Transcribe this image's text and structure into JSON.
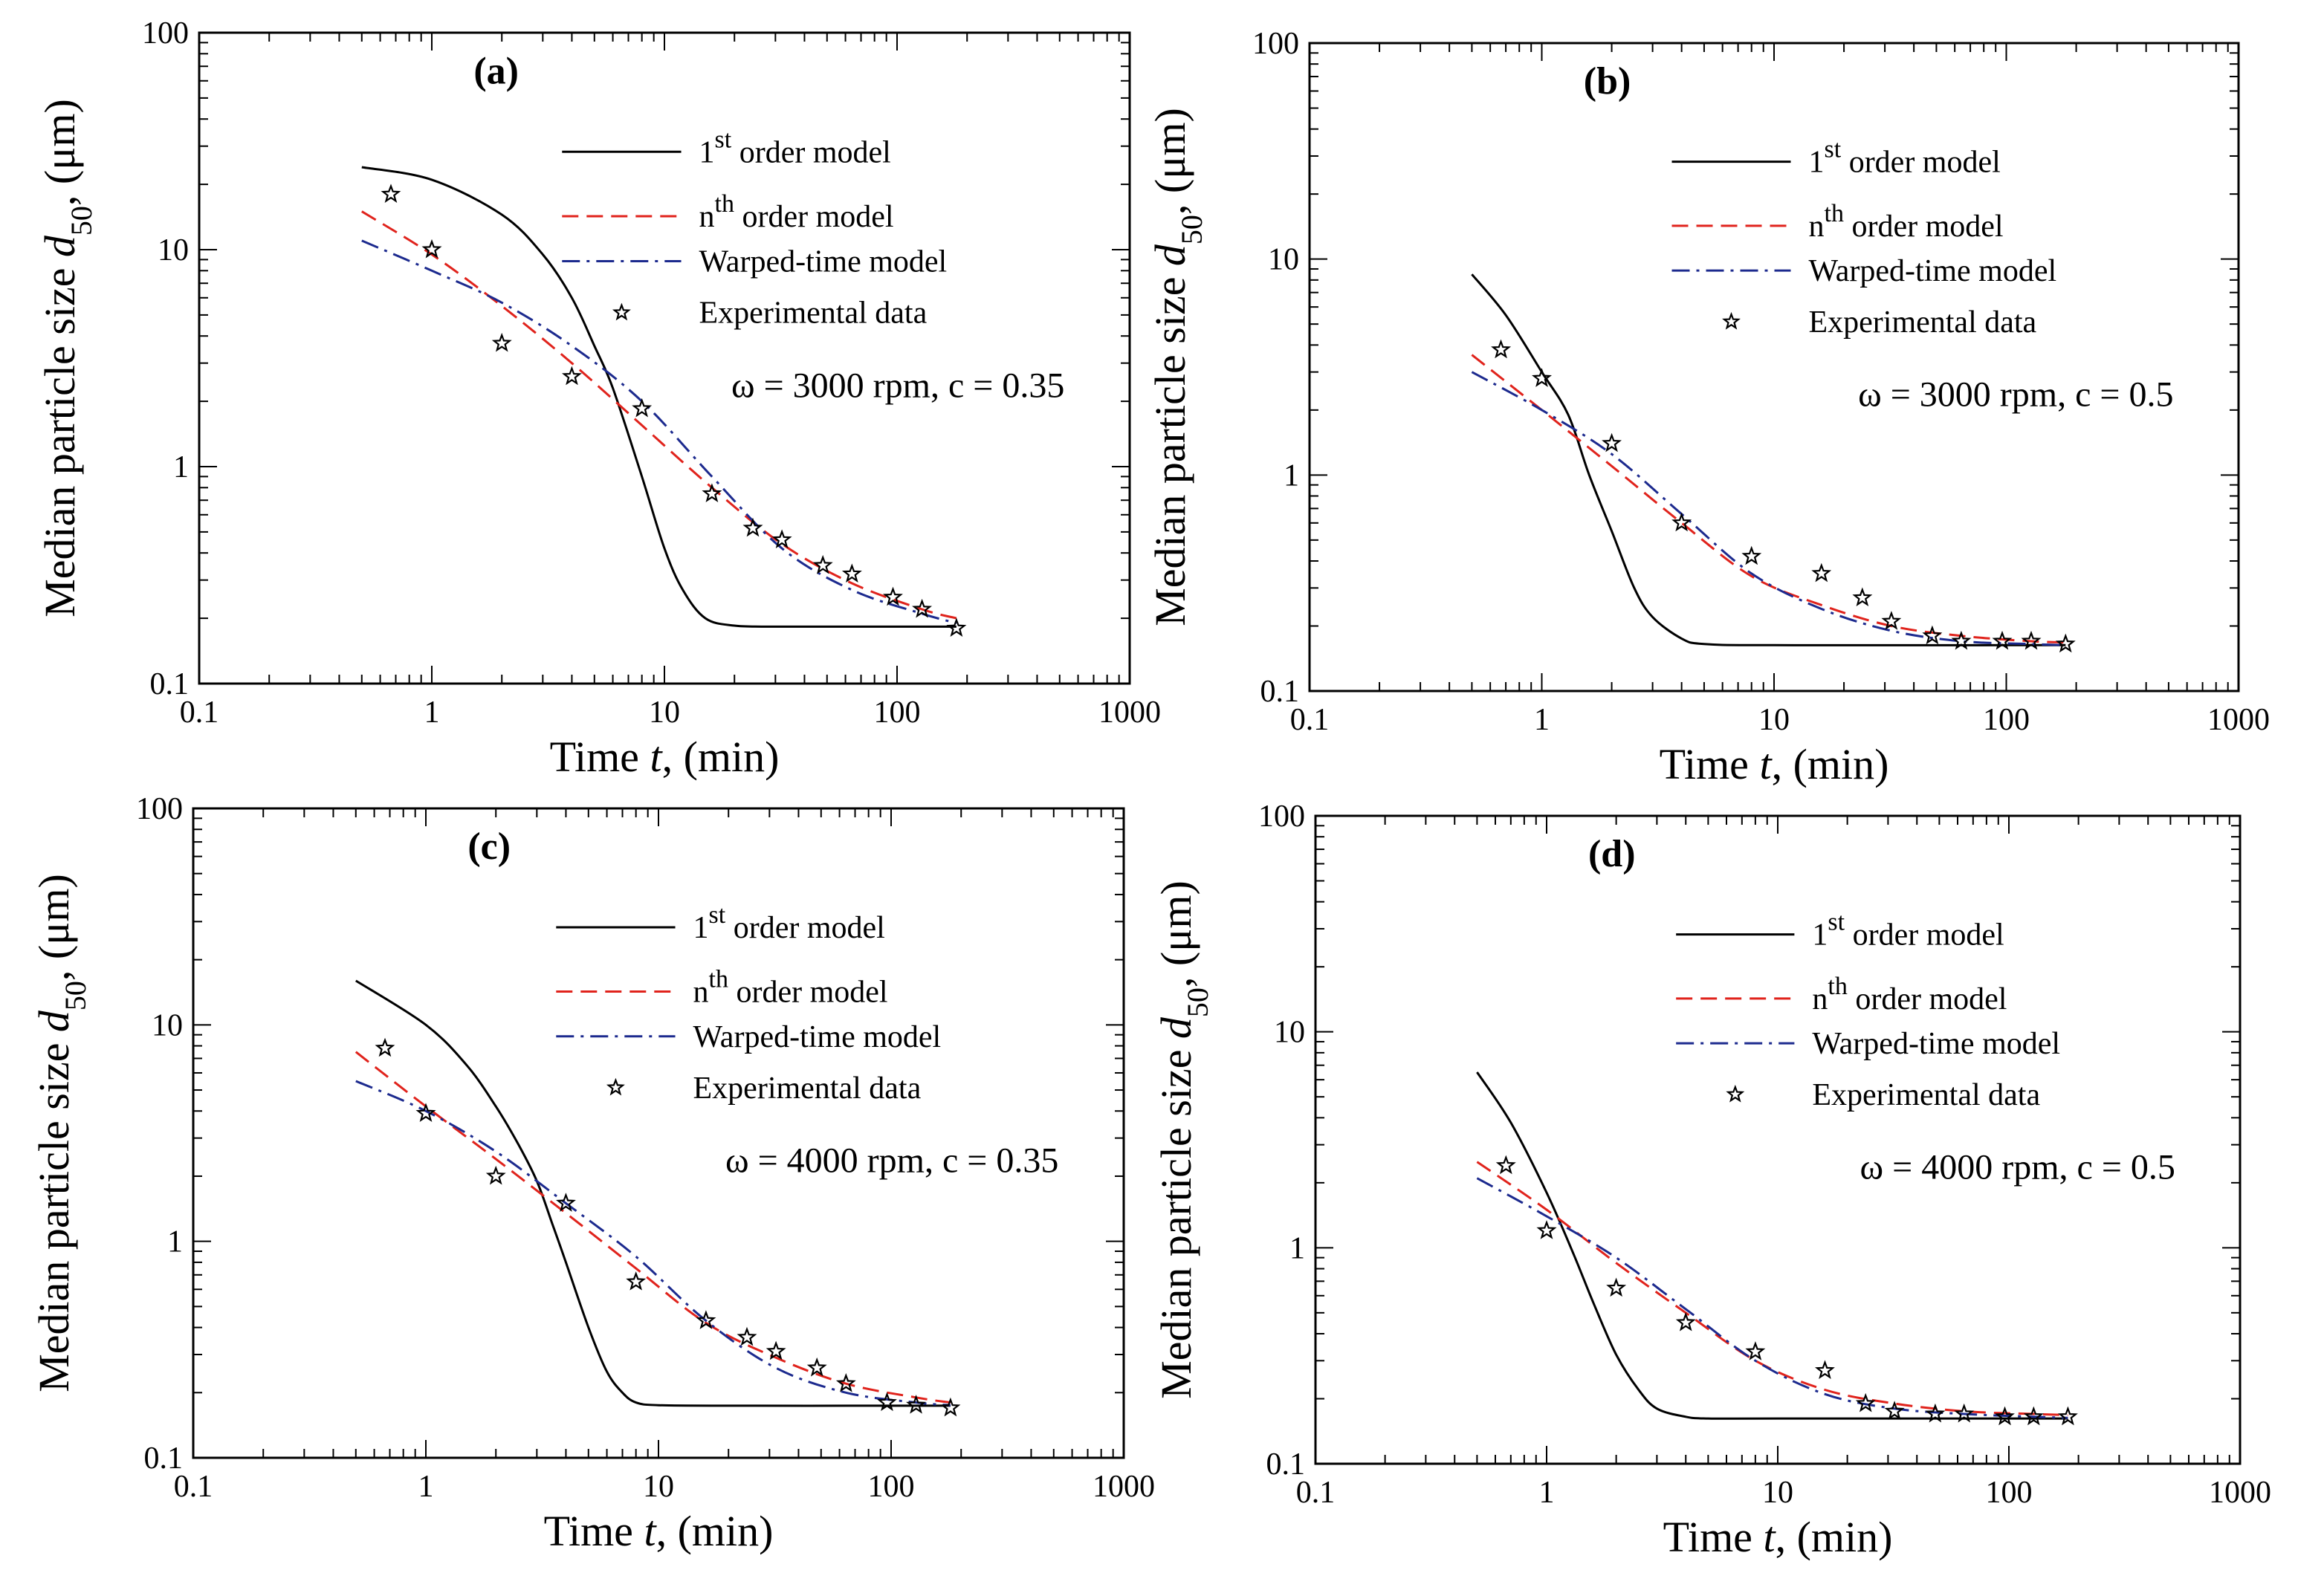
{
  "chart_data": [
    {
      "type": "line",
      "panel": "(a)",
      "condition": "ω = 3000 rpm, c = 0.35",
      "xlabel": "Time t, (min)",
      "ylabel": "Median particle size d50, (μm)",
      "xscale": "log",
      "yscale": "log",
      "xlim": [
        0.1,
        1000
      ],
      "ylim": [
        0.1,
        100
      ],
      "x_ticks": [
        "0.1",
        "1",
        "10",
        "100",
        "1000"
      ],
      "y_ticks": [
        "0.1",
        "1",
        "10",
        "100"
      ],
      "legend": {
        "first_order": {
          "prefix": "1",
          "sup": "st",
          "suffix": " order model"
        },
        "nth_order": {
          "prefix": "n",
          "sup": "th",
          "suffix": " order model"
        },
        "warped": "Warped-time model",
        "experimental": "Experimental data"
      },
      "series": [
        {
          "name": "1st order model",
          "style": "solid",
          "color": "#000000",
          "x": [
            0.5,
            1,
            2,
            3,
            4,
            5,
            6,
            8,
            10,
            12,
            15,
            20,
            30,
            50,
            100,
            180
          ],
          "y": [
            24,
            21,
            14.5,
            9.5,
            6.0,
            3.6,
            2.3,
            0.9,
            0.42,
            0.27,
            0.2,
            0.185,
            0.183,
            0.183,
            0.183,
            0.183
          ]
        },
        {
          "name": "nth order model",
          "style": "dashed",
          "color": "#e0231c",
          "x": [
            0.5,
            1,
            2,
            4,
            8,
            16,
            32,
            64,
            128,
            180
          ],
          "y": [
            15,
            9.5,
            5.5,
            3.0,
            1.55,
            0.8,
            0.44,
            0.29,
            0.22,
            0.2
          ]
        },
        {
          "name": "Warped-time model",
          "style": "dashdot",
          "color": "#1c2a8e",
          "x": [
            0.5,
            1,
            2,
            4,
            8,
            16,
            32,
            64,
            128,
            180
          ],
          "y": [
            11,
            8.0,
            5.7,
            3.6,
            2.0,
            0.9,
            0.42,
            0.27,
            0.21,
            0.19
          ]
        },
        {
          "name": "Experimental data",
          "style": "marker",
          "color": "#000000",
          "x": [
            0.667,
            1,
            2,
            4,
            8,
            16,
            24,
            32,
            48,
            64,
            96,
            128,
            180
          ],
          "y": [
            18,
            10,
            3.7,
            2.6,
            1.85,
            0.75,
            0.52,
            0.46,
            0.35,
            0.32,
            0.25,
            0.22,
            0.18
          ]
        }
      ]
    },
    {
      "type": "line",
      "panel": "(b)",
      "condition": "ω = 3000 rpm, c = 0.5",
      "xlabel": "Time t, (min)",
      "ylabel": "Median particle size d50, (μm)",
      "xscale": "log",
      "yscale": "log",
      "xlim": [
        0.1,
        1000
      ],
      "ylim": [
        0.1,
        100
      ],
      "x_ticks": [
        "0.1",
        "1",
        "10",
        "100",
        "1000"
      ],
      "y_ticks": [
        "0.1",
        "1",
        "10",
        "100"
      ],
      "legend": {
        "first_order": {
          "prefix": "1",
          "sup": "st",
          "suffix": " order model"
        },
        "nth_order": {
          "prefix": "n",
          "sup": "th",
          "suffix": " order model"
        },
        "warped": "Warped-time model",
        "experimental": "Experimental data"
      },
      "series": [
        {
          "name": "1st order model",
          "style": "solid",
          "color": "#000000",
          "x": [
            0.5,
            0.7,
            1,
            1.3,
            1.6,
            2,
            2.5,
            3,
            4,
            5,
            10,
            100,
            180
          ],
          "y": [
            8.5,
            5.5,
            3.0,
            1.9,
            1.0,
            0.55,
            0.3,
            0.22,
            0.175,
            0.165,
            0.163,
            0.163,
            0.163
          ]
        },
        {
          "name": "nth order model",
          "style": "dashed",
          "color": "#e0231c",
          "x": [
            0.5,
            1,
            2,
            4,
            8,
            16,
            32,
            64,
            128,
            180
          ],
          "y": [
            3.6,
            2.0,
            1.1,
            0.6,
            0.34,
            0.25,
            0.2,
            0.18,
            0.17,
            0.168
          ]
        },
        {
          "name": "Warped-time model",
          "style": "dashdot",
          "color": "#1c2a8e",
          "x": [
            0.5,
            1,
            2,
            4,
            8,
            16,
            32,
            64,
            128,
            180
          ],
          "y": [
            3.0,
            2.0,
            1.25,
            0.66,
            0.35,
            0.24,
            0.19,
            0.17,
            0.165,
            0.163
          ]
        },
        {
          "name": "Experimental data",
          "style": "marker",
          "color": "#000000",
          "x": [
            0.667,
            1,
            2,
            4,
            8,
            16,
            24,
            32,
            48,
            64,
            96,
            128,
            180
          ],
          "y": [
            3.8,
            2.8,
            1.4,
            0.6,
            0.42,
            0.35,
            0.27,
            0.21,
            0.18,
            0.17,
            0.17,
            0.17,
            0.165
          ]
        }
      ]
    },
    {
      "type": "line",
      "panel": "(c)",
      "condition": "ω = 4000 rpm, c = 0.35",
      "xlabel": "Time t, (min)",
      "ylabel": "Median particle size d50, (μm)",
      "xscale": "log",
      "yscale": "log",
      "xlim": [
        0.1,
        1000
      ],
      "ylim": [
        0.1,
        100
      ],
      "x_ticks": [
        "0.1",
        "1",
        "10",
        "100",
        "1000"
      ],
      "y_ticks": [
        "0.1",
        "1",
        "10",
        "100"
      ],
      "legend": {
        "first_order": {
          "prefix": "1",
          "sup": "st",
          "suffix": " order model"
        },
        "nth_order": {
          "prefix": "n",
          "sup": "th",
          "suffix": " order model"
        },
        "warped": "Warped-time model",
        "experimental": "Experimental data"
      },
      "series": [
        {
          "name": "1st order model",
          "style": "solid",
          "color": "#000000",
          "x": [
            0.5,
            1,
            1.5,
            2,
            2.5,
            3,
            3.5,
            4,
            5,
            6,
            7,
            8,
            10,
            20,
            100,
            180
          ],
          "y": [
            16,
            10,
            6.5,
            4.2,
            2.8,
            1.9,
            1.2,
            0.8,
            0.4,
            0.25,
            0.2,
            0.18,
            0.175,
            0.174,
            0.174,
            0.174
          ]
        },
        {
          "name": "nth order model",
          "style": "dashed",
          "color": "#e0231c",
          "x": [
            0.5,
            1,
            2,
            4,
            8,
            16,
            32,
            64,
            128,
            180
          ],
          "y": [
            7.5,
            4.2,
            2.4,
            1.35,
            0.75,
            0.42,
            0.29,
            0.22,
            0.19,
            0.18
          ]
        },
        {
          "name": "Warped-time model",
          "style": "dashdot",
          "color": "#1c2a8e",
          "x": [
            0.5,
            1,
            2,
            4,
            8,
            16,
            32,
            64,
            128,
            180
          ],
          "y": [
            5.5,
            4.0,
            2.6,
            1.5,
            0.85,
            0.43,
            0.26,
            0.2,
            0.18,
            0.175
          ]
        },
        {
          "name": "Experimental data",
          "style": "marker",
          "color": "#000000",
          "x": [
            0.667,
            1,
            2,
            4,
            8,
            16,
            24,
            32,
            48,
            64,
            96,
            128,
            180
          ],
          "y": [
            7.8,
            3.9,
            2.0,
            1.5,
            0.65,
            0.43,
            0.36,
            0.31,
            0.26,
            0.22,
            0.18,
            0.175,
            0.17
          ]
        }
      ]
    },
    {
      "type": "line",
      "panel": "(d)",
      "condition": "ω = 4000 rpm, c = 0.5",
      "xlabel": "Time t, (min)",
      "ylabel": "Median particle size d50, (μm)",
      "xscale": "log",
      "yscale": "log",
      "xlim": [
        0.1,
        1000
      ],
      "ylim": [
        0.1,
        100
      ],
      "x_ticks": [
        "0.1",
        "1",
        "10",
        "100",
        "1000"
      ],
      "y_ticks": [
        "0.1",
        "1",
        "10",
        "100"
      ],
      "legend": {
        "first_order": {
          "prefix": "1",
          "sup": "st",
          "suffix": " order model"
        },
        "nth_order": {
          "prefix": "n",
          "sup": "th",
          "suffix": " order model"
        },
        "warped": "Warped-time model",
        "experimental": "Experimental data"
      },
      "series": [
        {
          "name": "1st order model",
          "style": "solid",
          "color": "#000000",
          "x": [
            0.5,
            0.7,
            1,
            1.3,
            1.6,
            2,
            2.5,
            3,
            4,
            5,
            10,
            100,
            180
          ],
          "y": [
            6.5,
            3.8,
            1.8,
            0.95,
            0.55,
            0.32,
            0.22,
            0.18,
            0.165,
            0.162,
            0.162,
            0.162,
            0.162
          ]
        },
        {
          "name": "nth order model",
          "style": "dashed",
          "color": "#e0231c",
          "x": [
            0.5,
            1,
            2,
            4,
            8,
            16,
            32,
            64,
            128,
            180
          ],
          "y": [
            2.5,
            1.5,
            0.85,
            0.5,
            0.3,
            0.22,
            0.19,
            0.175,
            0.17,
            0.168
          ]
        },
        {
          "name": "Warped-time model",
          "style": "dashdot",
          "color": "#1c2a8e",
          "x": [
            0.5,
            1,
            2,
            4,
            8,
            16,
            32,
            64,
            128,
            180
          ],
          "y": [
            2.1,
            1.4,
            0.9,
            0.52,
            0.3,
            0.21,
            0.18,
            0.17,
            0.165,
            0.163
          ]
        },
        {
          "name": "Experimental data",
          "style": "marker",
          "color": "#000000",
          "x": [
            0.667,
            1,
            2,
            4,
            8,
            16,
            24,
            32,
            48,
            64,
            96,
            128,
            180
          ],
          "y": [
            2.4,
            1.2,
            0.65,
            0.45,
            0.33,
            0.27,
            0.19,
            0.175,
            0.17,
            0.17,
            0.165,
            0.165,
            0.165
          ]
        }
      ]
    }
  ]
}
